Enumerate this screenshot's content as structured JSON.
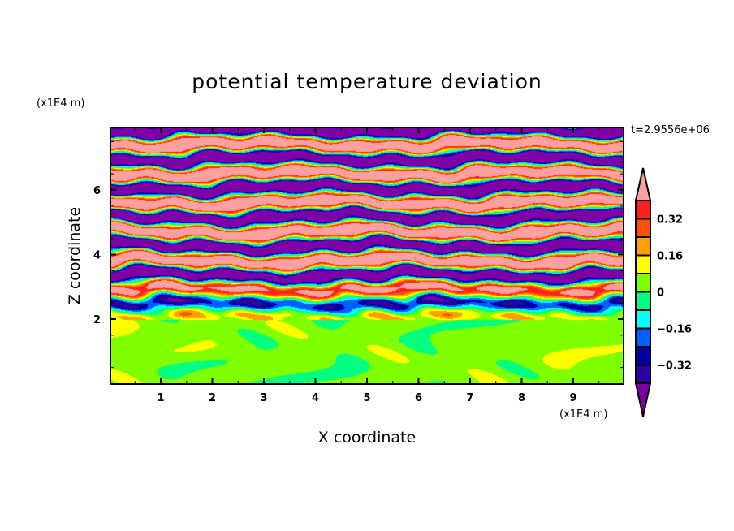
{
  "chart_data": {
    "type": "heatmap",
    "title": "potential temperature deviation",
    "xlabel": "X coordinate",
    "ylabel": "Z coordinate",
    "x_unit": "(x1E4 m)",
    "y_unit": "(x1E4 m)",
    "time_label": "t=2.9556e+06",
    "xlim": [
      0,
      10
    ],
    "ylim": [
      0,
      8
    ],
    "xticks": [
      "1",
      "2",
      "3",
      "4",
      "5",
      "6",
      "7",
      "8",
      "9"
    ],
    "yticks": [
      "2",
      "4",
      "6"
    ],
    "colorbar": {
      "levels": [
        -0.4,
        -0.32,
        -0.24,
        -0.16,
        -0.08,
        0,
        0.08,
        0.16,
        0.24,
        0.32,
        0.4
      ],
      "tick_labels": [
        "0.32",
        "0.16",
        "0",
        "−0.16",
        "−0.32"
      ],
      "tick_values": [
        0.32,
        0.16,
        0,
        -0.16,
        -0.32
      ],
      "colors": [
        "#8000a8",
        "#3000a0",
        "#0000a0",
        "#0060ff",
        "#00ffff",
        "#00ff80",
        "#80ff00",
        "#ffff00",
        "#ffa000",
        "#ff5000",
        "#ff2020",
        "#ffa0a0"
      ],
      "extend": "both"
    },
    "field_description_regions": [
      {
        "z_range": [
          0,
          2
        ],
        "value_range": [
          0,
          0.08
        ]
      },
      {
        "z_range": [
          2,
          8
        ],
        "value_range": [
          -0.5,
          0.5
        ]
      }
    ]
  }
}
